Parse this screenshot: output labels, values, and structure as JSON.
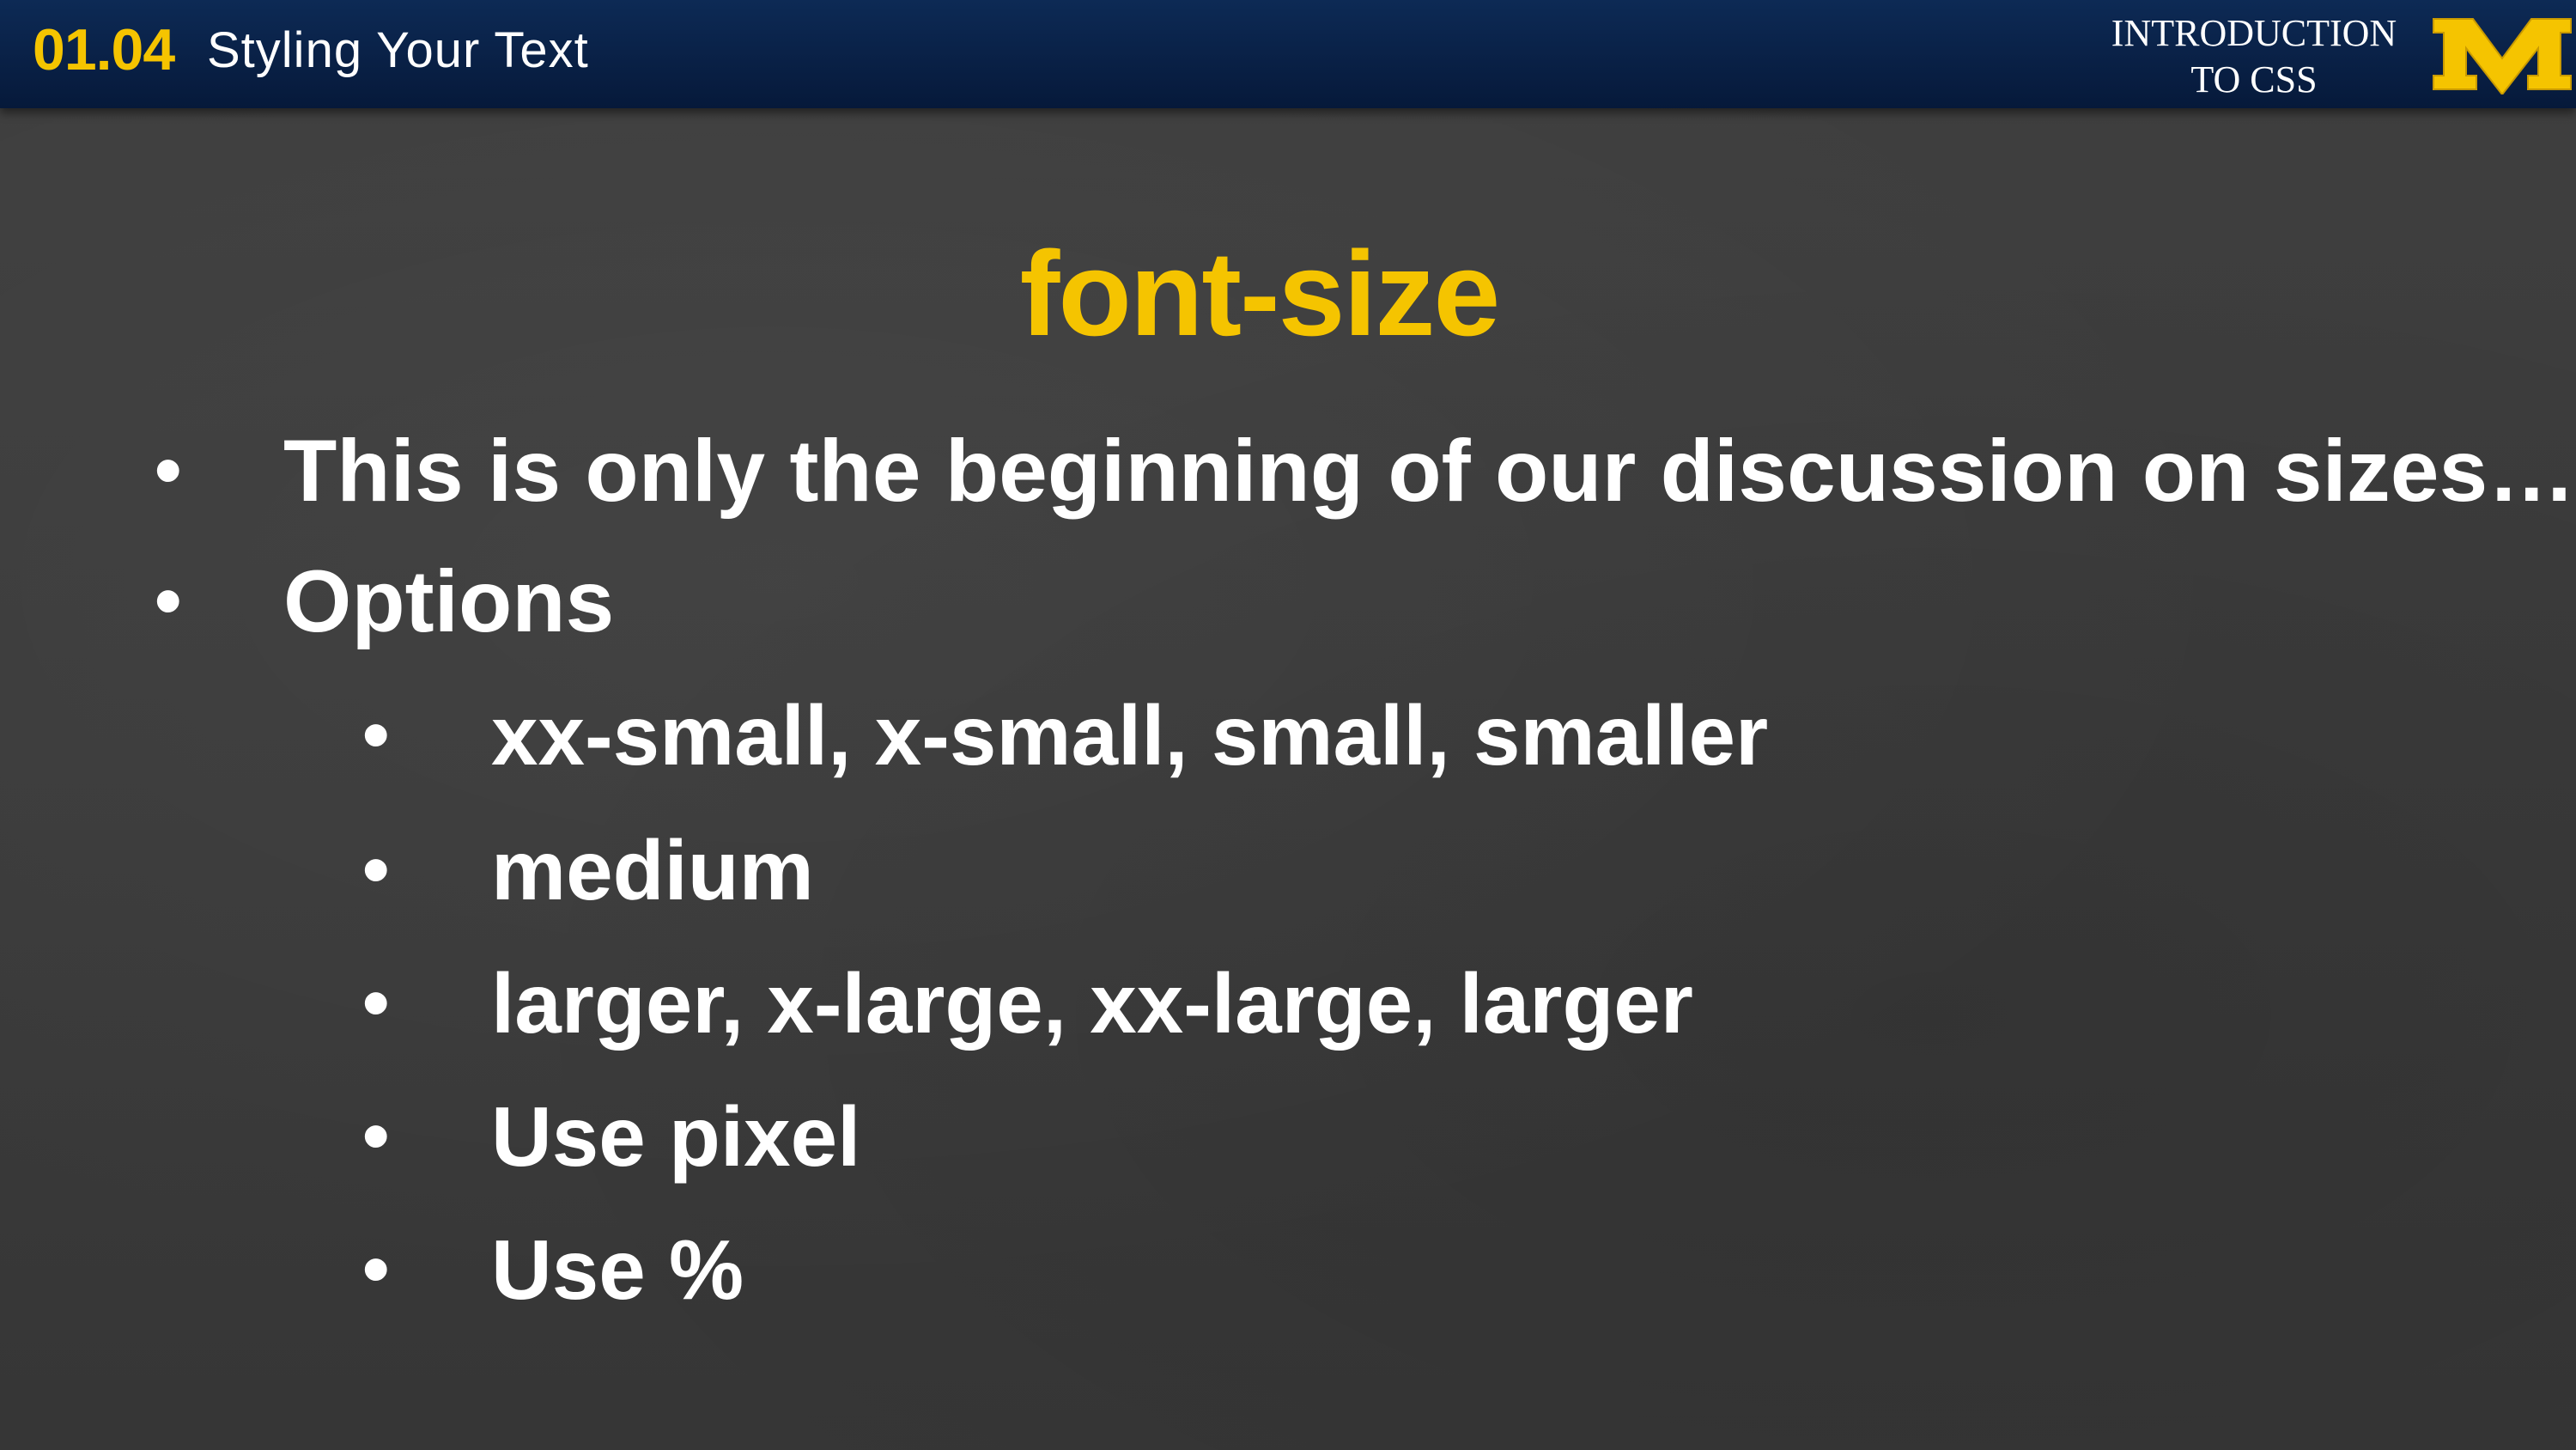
{
  "header": {
    "lesson_number": "01.04",
    "lesson_title": "Styling Your Text",
    "course_title_line1": "INTRODUCTION",
    "course_title_line2": "TO CSS",
    "logo_letter": "M"
  },
  "slide": {
    "heading": "font-size",
    "bullet_symbol": "•",
    "bullets": [
      "This is only the beginning of our discussion on sizes…",
      "Options"
    ],
    "sub_bullets": [
      "xx-small, x-small, small, smaller",
      "medium",
      "larger, x-large, xx-large, larger",
      "Use pixel",
      "Use %"
    ]
  },
  "colors": {
    "accent": "#f5c400",
    "header_bg": "#0a2450",
    "background": "#3d3d3d",
    "text": "#ffffff"
  }
}
